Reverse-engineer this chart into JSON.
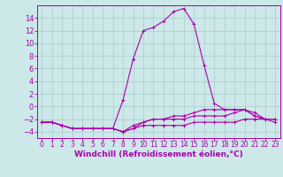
{
  "background_color": "#cce8e8",
  "grid_color": "#aacccc",
  "line_color": "#aa00aa",
  "xlabel": "Windchill (Refroidissement éolien,°C)",
  "xlabel_fontsize": 6.5,
  "ytick_fontsize": 6,
  "xtick_fontsize": 5.5,
  "ylim": [
    -5,
    16
  ],
  "xlim": [
    -0.5,
    23.5
  ],
  "yticks": [
    -4,
    -2,
    0,
    2,
    4,
    6,
    8,
    10,
    12,
    14
  ],
  "xticks": [
    0,
    1,
    2,
    3,
    4,
    5,
    6,
    7,
    8,
    9,
    10,
    11,
    12,
    13,
    14,
    15,
    16,
    17,
    18,
    19,
    20,
    21,
    22,
    23
  ],
  "line1_x": [
    0,
    1,
    2,
    3,
    4,
    5,
    6,
    7,
    8,
    9,
    10,
    11,
    12,
    13,
    14,
    15,
    16,
    17,
    18,
    19,
    20,
    21,
    22,
    23
  ],
  "line1_y": [
    -2.5,
    -2.5,
    -3.0,
    -3.5,
    -3.5,
    -3.5,
    -3.5,
    -3.5,
    -4.0,
    -3.5,
    -3.0,
    -3.0,
    -3.0,
    -3.0,
    -3.0,
    -2.5,
    -2.5,
    -2.5,
    -2.5,
    -2.5,
    -2.0,
    -2.0,
    -2.0,
    -2.0
  ],
  "line2_x": [
    0,
    1,
    2,
    3,
    4,
    5,
    6,
    7,
    8,
    9,
    10,
    11,
    12,
    13,
    14,
    15,
    16,
    17,
    18,
    19,
    20,
    21,
    22,
    23
  ],
  "line2_y": [
    -2.5,
    -2.5,
    -3.0,
    -3.5,
    -3.5,
    -3.5,
    -3.5,
    -3.5,
    1.0,
    7.5,
    12.0,
    12.5,
    13.5,
    15.0,
    15.5,
    13.0,
    6.5,
    0.5,
    -0.5,
    -0.5,
    -0.5,
    -1.5,
    -2.0,
    -2.5
  ],
  "line3_x": [
    0,
    1,
    2,
    3,
    4,
    5,
    6,
    7,
    8,
    9,
    10,
    11,
    12,
    13,
    14,
    15,
    16,
    17,
    18,
    19,
    20,
    21,
    22,
    23
  ],
  "line3_y": [
    -2.5,
    -2.5,
    -3.0,
    -3.5,
    -3.5,
    -3.5,
    -3.5,
    -3.5,
    -4.0,
    -3.0,
    -2.5,
    -2.0,
    -2.0,
    -1.5,
    -1.5,
    -1.0,
    -0.5,
    -0.5,
    -0.5,
    -0.5,
    -0.5,
    -1.0,
    -2.0,
    -2.0
  ],
  "line4_x": [
    0,
    1,
    2,
    3,
    4,
    5,
    6,
    7,
    8,
    9,
    10,
    11,
    12,
    13,
    14,
    15,
    16,
    17,
    18,
    19,
    20,
    21,
    22,
    23
  ],
  "line4_y": [
    -2.5,
    -2.5,
    -3.0,
    -3.5,
    -3.5,
    -3.5,
    -3.5,
    -3.5,
    -4.0,
    -3.5,
    -2.5,
    -2.0,
    -2.0,
    -2.0,
    -2.0,
    -1.5,
    -1.5,
    -1.5,
    -1.5,
    -1.0,
    -0.5,
    -1.5,
    -2.0,
    -2.0
  ]
}
